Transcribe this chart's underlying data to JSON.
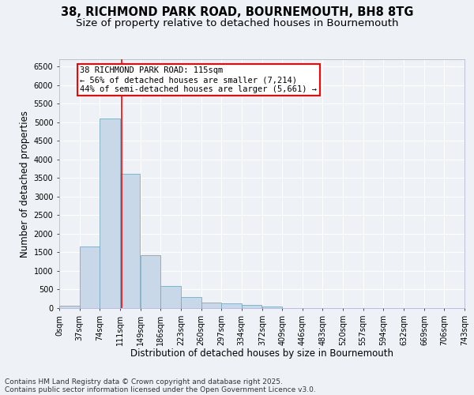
{
  "title_line1": "38, RICHMOND PARK ROAD, BOURNEMOUTH, BH8 8TG",
  "title_line2": "Size of property relative to detached houses in Bournemouth",
  "xlabel": "Distribution of detached houses by size in Bournemouth",
  "ylabel": "Number of detached properties",
  "bar_color": "#c8d8e8",
  "bar_edge_color": "#7aaabf",
  "vline_color": "red",
  "vline_x": 115,
  "bin_edges": [
    0,
    37,
    74,
    111,
    149,
    186,
    223,
    260,
    297,
    334,
    372,
    409,
    446,
    483,
    520,
    557,
    594,
    632,
    669,
    706,
    743
  ],
  "bin_labels": [
    "0sqm",
    "37sqm",
    "74sqm",
    "111sqm",
    "149sqm",
    "186sqm",
    "223sqm",
    "260sqm",
    "297sqm",
    "334sqm",
    "372sqm",
    "409sqm",
    "446sqm",
    "483sqm",
    "520sqm",
    "557sqm",
    "594sqm",
    "632sqm",
    "669sqm",
    "706sqm",
    "743sqm"
  ],
  "bar_heights": [
    60,
    1650,
    5100,
    3620,
    1420,
    600,
    300,
    155,
    120,
    80,
    35,
    5,
    0,
    0,
    0,
    0,
    0,
    0,
    0,
    0
  ],
  "ylim": [
    0,
    6700
  ],
  "yticks": [
    0,
    500,
    1000,
    1500,
    2000,
    2500,
    3000,
    3500,
    4000,
    4500,
    5000,
    5500,
    6000,
    6500
  ],
  "annotation_title": "38 RICHMOND PARK ROAD: 115sqm",
  "annotation_line2": "← 56% of detached houses are smaller (7,214)",
  "annotation_line3": "44% of semi-detached houses are larger (5,661) →",
  "annotation_box_color": "white",
  "annotation_edge_color": "red",
  "background_color": "#eef2f7",
  "footer_line1": "Contains HM Land Registry data © Crown copyright and database right 2025.",
  "footer_line2": "Contains public sector information licensed under the Open Government Licence v3.0.",
  "title_fontsize": 10.5,
  "subtitle_fontsize": 9.5,
  "axis_label_fontsize": 8.5,
  "tick_fontsize": 7,
  "annotation_fontsize": 7.5,
  "footer_fontsize": 6.5
}
